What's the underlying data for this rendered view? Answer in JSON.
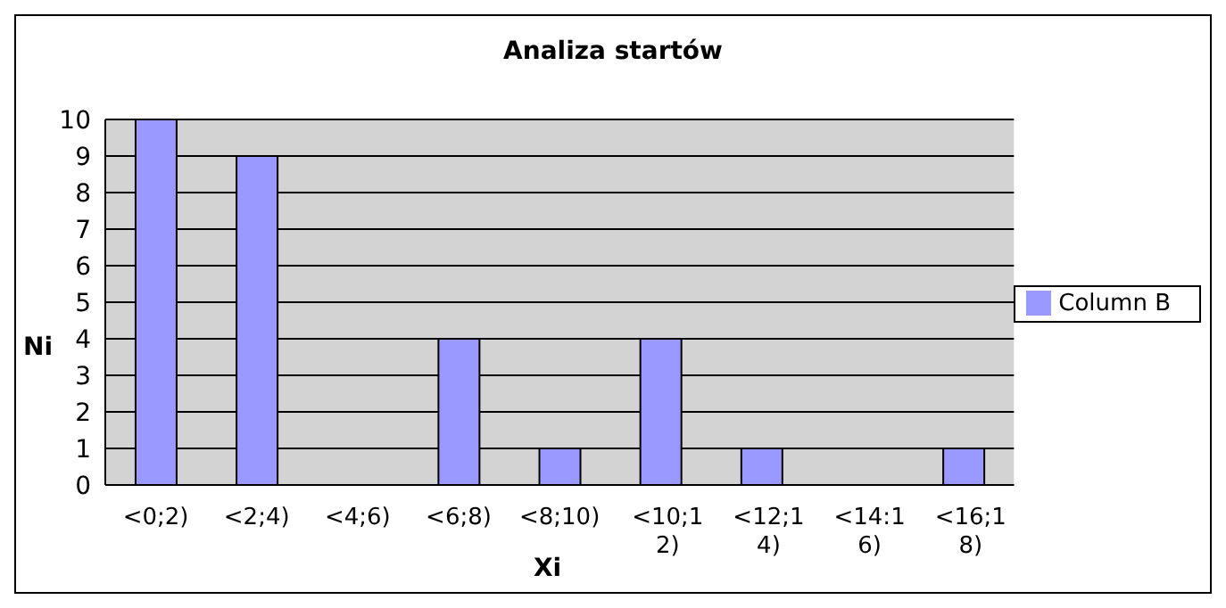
{
  "chart_data": {
    "type": "bar",
    "title": "Analiza startów",
    "xlabel": "Xi",
    "ylabel": "Ni",
    "categories": [
      "<0;2)",
      "<2;4)",
      "<4;6)",
      "<6;8)",
      "<8;10)",
      "<10;12)",
      "<12;14)",
      "<14:16)",
      "<16;18)"
    ],
    "series": [
      {
        "name": "Column B",
        "color": "#9999ff",
        "values": [
          10,
          9,
          0,
          4,
          1,
          4,
          1,
          0,
          1
        ]
      }
    ],
    "ylim": [
      0,
      10
    ],
    "yticks": [
      0,
      1,
      2,
      3,
      4,
      5,
      6,
      7,
      8,
      9,
      10
    ],
    "grid": "y",
    "legend": "right"
  }
}
